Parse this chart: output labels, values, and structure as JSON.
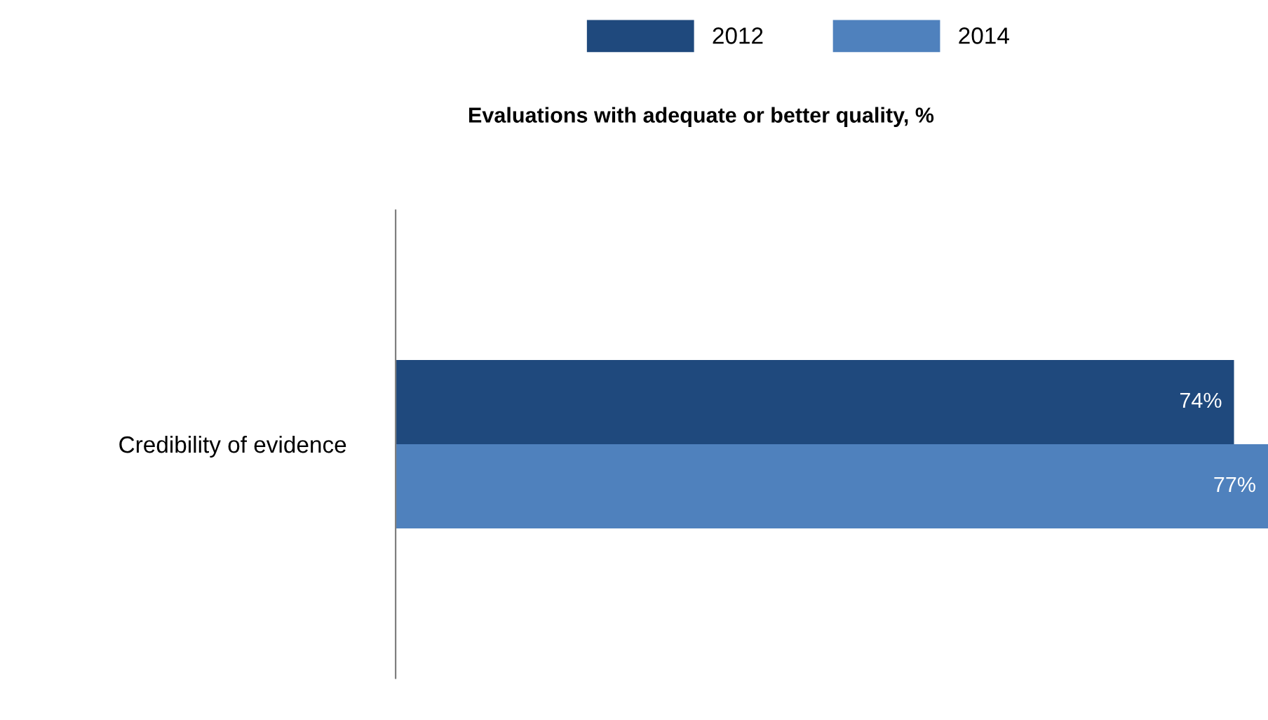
{
  "chart_data": {
    "type": "bar",
    "orientation": "horizontal",
    "title": "Evaluations with adequate or better quality, %",
    "categories": [
      "Credibility of evidence"
    ],
    "series": [
      {
        "name": "2012",
        "color": "#1f497d",
        "values": [
          74
        ],
        "value_labels": [
          "74%"
        ]
      },
      {
        "name": "2014",
        "color": "#4f81bd",
        "values": [
          77
        ],
        "value_labels": [
          "77%"
        ]
      }
    ],
    "legend": "top",
    "grid": false
  }
}
